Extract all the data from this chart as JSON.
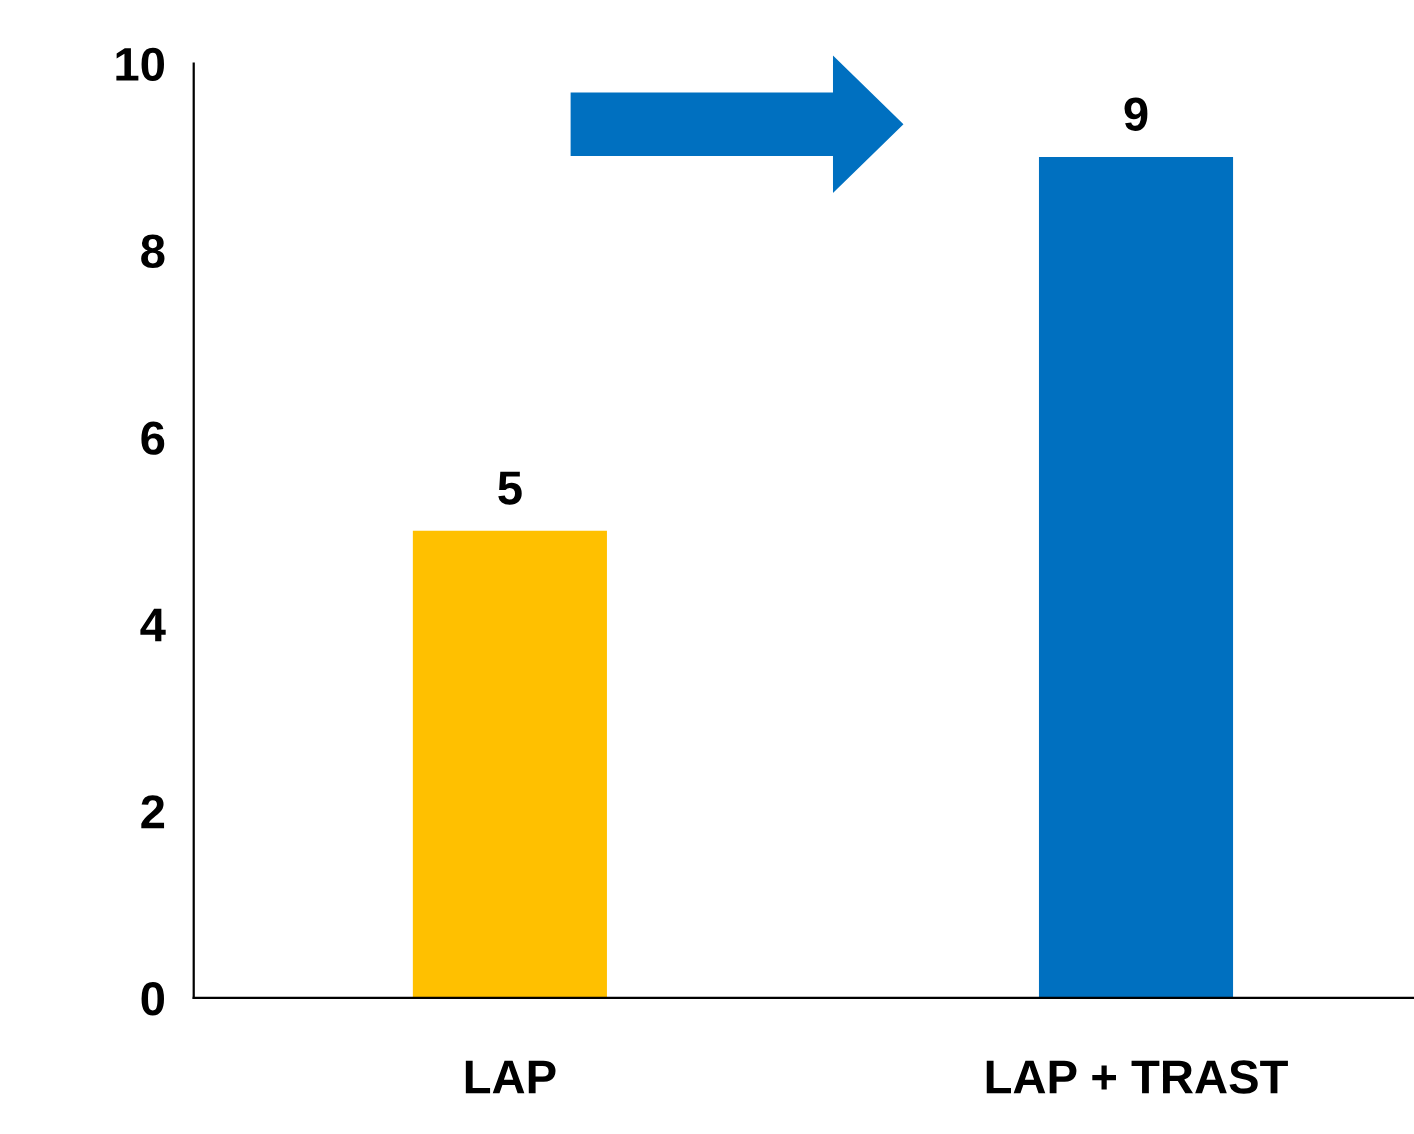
{
  "chart_data": {
    "type": "bar",
    "categories": [
      "LAP",
      "LAP + TRAST"
    ],
    "values": [
      5,
      9
    ],
    "colors": [
      "#ffc000",
      "#0070c0"
    ],
    "ylim": [
      0,
      10
    ],
    "yticks": [
      0,
      2,
      4,
      6,
      8,
      10
    ],
    "data_labels": true,
    "grid": false,
    "legend": false
  }
}
